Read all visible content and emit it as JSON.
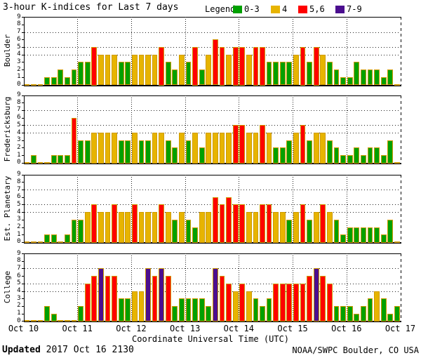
{
  "title": "3-hour K-indices for Last 7 days",
  "legend": {
    "label": "Legend:",
    "items": [
      {
        "label": "0-3",
        "color": "#00A000"
      },
      {
        "label": "4",
        "color": "#E7B400"
      },
      {
        "label": "5,6",
        "color": "#FF0000"
      },
      {
        "label": "7-9",
        "color": "#4B0E8F"
      }
    ]
  },
  "x_axis": {
    "title": "Coordinate Universal Time (UTC)",
    "tick_labels": [
      "Oct 10",
      "Oct 11",
      "Oct 12",
      "Oct 13",
      "Oct 14",
      "Oct 15",
      "Oct 16",
      "Oct 17"
    ]
  },
  "y_axis": {
    "tick_labels": [
      "0",
      "1",
      "2",
      "3",
      "4",
      "5",
      "6",
      "7",
      "8",
      "9"
    ],
    "dotted_gridlines_at": [
      4,
      5,
      7
    ],
    "range": [
      0,
      9
    ]
  },
  "footer": {
    "updated_label": "Updated",
    "updated_value": " 2017 Oct 16 2130",
    "credit": "NOAA/SWPC Boulder, CO USA"
  },
  "chart_data": {
    "type": "bar",
    "bars_per_day": 8,
    "interval_hours": 3,
    "color_rules": [
      {
        "k_range": "0-3",
        "color": "#00A000"
      },
      {
        "k_range": "4",
        "color": "#E7B400"
      },
      {
        "k_range": "5,6",
        "color": "#FF0000"
      },
      {
        "k_range": "7-9",
        "color": "#4B0E8F"
      }
    ],
    "panels": [
      {
        "name": "Boulder",
        "values": [
          0,
          0,
          0,
          1,
          1,
          2,
          1,
          2,
          3,
          3,
          5,
          4,
          4,
          4,
          3,
          3,
          4,
          4,
          4,
          4,
          5,
          3,
          2,
          4,
          3,
          5,
          2,
          4,
          6,
          5,
          4,
          5,
          5,
          4,
          5,
          5,
          3,
          3,
          3,
          3,
          4,
          5,
          3,
          5,
          4,
          3,
          2,
          1,
          1,
          3,
          2,
          2,
          2,
          1,
          2,
          0
        ]
      },
      {
        "name": "Fredericksburg",
        "values": [
          0,
          1,
          0,
          0,
          1,
          1,
          1,
          6,
          3,
          3,
          4,
          4,
          4,
          4,
          3,
          3,
          4,
          3,
          3,
          4,
          4,
          3,
          2,
          4,
          3,
          4,
          2,
          4,
          4,
          4,
          4,
          5,
          5,
          4,
          4,
          5,
          4,
          2,
          2,
          3,
          4,
          5,
          3,
          4,
          4,
          3,
          2,
          1,
          1,
          2,
          1,
          2,
          2,
          1,
          3,
          0
        ]
      },
      {
        "name": "Est. Planetary",
        "values": [
          0,
          0,
          0,
          1,
          1,
          0,
          1,
          3,
          3,
          4,
          5,
          4,
          4,
          5,
          4,
          4,
          5,
          4,
          4,
          4,
          5,
          4,
          3,
          4,
          3,
          2,
          4,
          4,
          6,
          5,
          6,
          5,
          5,
          4,
          4,
          5,
          5,
          4,
          4,
          3,
          4,
          5,
          3,
          4,
          5,
          4,
          3,
          1,
          2,
          2,
          2,
          2,
          2,
          1,
          3,
          0
        ]
      },
      {
        "name": "College",
        "values": [
          0,
          0,
          0,
          2,
          1,
          0,
          0,
          0,
          2,
          5,
          6,
          7,
          6,
          6,
          3,
          3,
          4,
          4,
          7,
          6,
          7,
          6,
          2,
          3,
          3,
          3,
          3,
          2,
          7,
          6,
          5,
          4,
          5,
          4,
          3,
          2,
          3,
          5,
          5,
          5,
          5,
          5,
          6,
          7,
          6,
          5,
          2,
          2,
          2,
          1,
          2,
          3,
          4,
          3,
          1,
          2
        ]
      }
    ]
  }
}
